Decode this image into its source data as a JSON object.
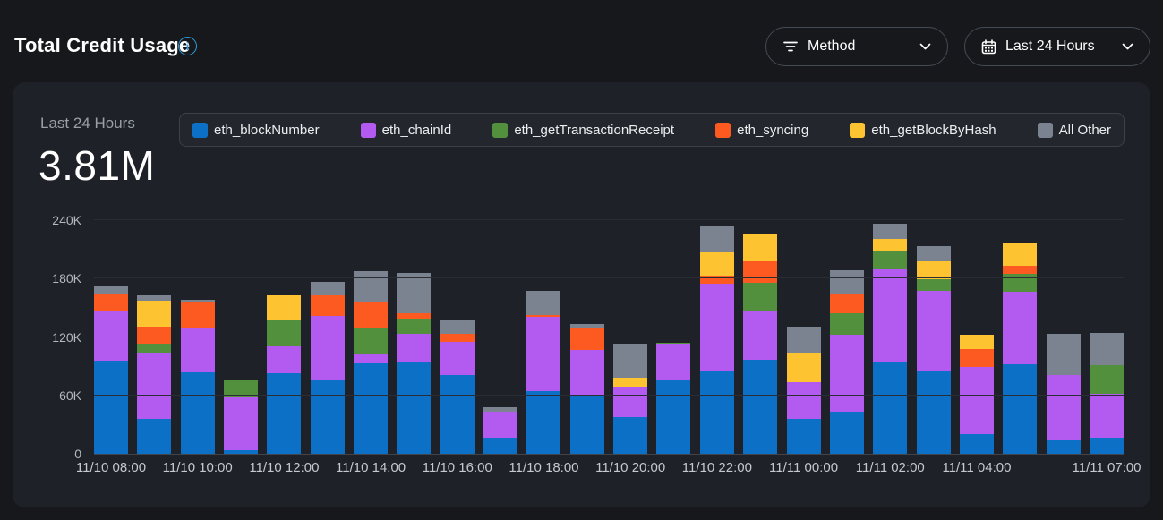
{
  "header": {
    "title": "Total Credit Usage"
  },
  "filters": {
    "method_label": "Method",
    "range_label": "Last 24 Hours"
  },
  "summary": {
    "period_label": "Last 24 Hours",
    "total": "3.81M"
  },
  "colors": {
    "accent_info": "#2d9cdb",
    "card_bg": "#1e2127",
    "page_bg": "#17181c"
  },
  "legend": [
    {
      "label": "eth_blockNumber",
      "color": "#0c70c6"
    },
    {
      "label": "eth_chainId",
      "color": "#b35af0"
    },
    {
      "label": "eth_getTransactionReceipt",
      "color": "#52903e"
    },
    {
      "label": "eth_syncing",
      "color": "#fd5a22"
    },
    {
      "label": "eth_getBlockByHash",
      "color": "#fec331"
    },
    {
      "label": "All Other",
      "color": "#7b8290"
    }
  ],
  "chart_data": {
    "type": "bar",
    "stacked": true,
    "title": "Total Credit Usage — Last 24 Hours",
    "unit": "credits (thousands)",
    "ylim_k": [
      0,
      240
    ],
    "y_ticks": [
      {
        "label": "0",
        "k": 0
      },
      {
        "label": "60K",
        "k": 60
      },
      {
        "label": "120K",
        "k": 120
      },
      {
        "label": "180K",
        "k": 180
      },
      {
        "label": "240K",
        "k": 240
      }
    ],
    "x": [
      "08:00",
      "09:00",
      "10:00",
      "11:00",
      "12:00",
      "13:00",
      "14:00",
      "15:00",
      "16:00",
      "17:00",
      "18:00",
      "19:00",
      "20:00",
      "21:00",
      "22:00",
      "23:00",
      "00:00",
      "01:00",
      "02:00",
      "03:00",
      "04:00",
      "05:00",
      "06:00",
      "07:00"
    ],
    "x_ticks": [
      {
        "label": "11/10 08:00",
        "bar": 0
      },
      {
        "label": "11/10 10:00",
        "bar": 2
      },
      {
        "label": "11/10 12:00",
        "bar": 4
      },
      {
        "label": "11/10 14:00",
        "bar": 6
      },
      {
        "label": "11/10 16:00",
        "bar": 8
      },
      {
        "label": "11/10 18:00",
        "bar": 10
      },
      {
        "label": "11/10 20:00",
        "bar": 12
      },
      {
        "label": "11/10 22:00",
        "bar": 14
      },
      {
        "label": "11/11 00:00",
        "bar": 16
      },
      {
        "label": "11/11 02:00",
        "bar": 18
      },
      {
        "label": "11/11 04:00",
        "bar": 20
      },
      {
        "label": "11/11 07:00",
        "bar": 23
      }
    ],
    "series": [
      {
        "name": "eth_blockNumber",
        "color": "#0c70c6",
        "values_k": [
          96,
          36,
          84,
          4,
          83,
          75,
          93,
          95,
          81,
          17,
          64,
          60,
          38,
          75,
          85,
          97,
          36,
          43,
          94,
          85,
          20,
          92,
          14,
          17
        ]
      },
      {
        "name": "eth_chainId",
        "color": "#b35af0",
        "values_k": [
          50,
          68,
          46,
          54,
          27,
          67,
          9,
          28,
          34,
          26,
          77,
          47,
          31,
          38,
          90,
          50,
          38,
          79,
          95,
          82,
          69,
          74,
          67,
          45
        ]
      },
      {
        "name": "eth_getTransactionReceipt",
        "color": "#52903e",
        "values_k": [
          0,
          9,
          0,
          17,
          27,
          0,
          27,
          16,
          0,
          0,
          0,
          0,
          0,
          1,
          0,
          29,
          0,
          22,
          20,
          12,
          0,
          19,
          0,
          29
        ]
      },
      {
        "name": "eth_syncing",
        "color": "#fd5a22",
        "values_k": [
          18,
          18,
          26,
          0,
          0,
          21,
          27,
          5,
          8,
          0,
          2,
          23,
          0,
          0,
          8,
          22,
          0,
          21,
          0,
          0,
          19,
          8,
          0,
          0
        ]
      },
      {
        "name": "eth_getBlockByHash",
        "color": "#fec331",
        "values_k": [
          0,
          26,
          0,
          0,
          26,
          0,
          0,
          0,
          0,
          0,
          0,
          0,
          9,
          0,
          24,
          27,
          30,
          0,
          12,
          19,
          14,
          24,
          0,
          0
        ]
      },
      {
        "name": "All Other",
        "color": "#7b8290",
        "values_k": [
          9,
          6,
          2,
          0,
          0,
          14,
          32,
          42,
          14,
          5,
          24,
          3,
          35,
          0,
          27,
          0,
          27,
          24,
          15,
          15,
          0,
          0,
          42,
          33
        ]
      }
    ],
    "total_label": "3.81M"
  }
}
